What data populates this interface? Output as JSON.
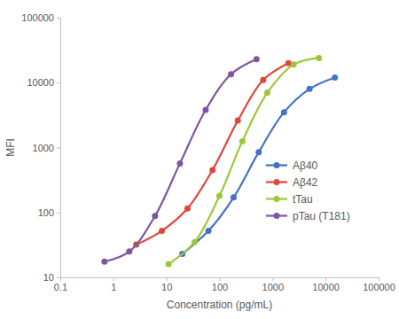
{
  "chart_data": {
    "type": "line",
    "x_label": "Concentration (pg/mL)",
    "y_label": "MFI",
    "log": true,
    "xlim": [
      0.1,
      100000
    ],
    "ylim": [
      10,
      100000
    ],
    "xticks": [
      0.1,
      1,
      10,
      100,
      1000,
      10000,
      100000
    ],
    "yticks": [
      10,
      100,
      1000,
      10000,
      100000
    ],
    "grid": false,
    "legend": "right",
    "marker": "circle",
    "series": [
      {
        "name": "Aβ40",
        "color": "#4472c4",
        "x": [
          20,
          62,
          185,
          550,
          1650,
          5000,
          15000
        ],
        "values": [
          23,
          52,
          170,
          850,
          3500,
          8000,
          12000
        ]
      },
      {
        "name": "Aβ42",
        "color": "#e0473c",
        "x": [
          2.7,
          8.2,
          25,
          74,
          222,
          667,
          2000
        ],
        "values": [
          32,
          52,
          115,
          450,
          2600,
          11000,
          20000
        ]
      },
      {
        "name": "tTau",
        "color": "#9dc73a",
        "x": [
          11,
          34,
          100,
          270,
          800,
          2500,
          7500
        ],
        "values": [
          16,
          35,
          180,
          1250,
          7000,
          19000,
          24000
        ]
      },
      {
        "name": "pTau (T181)",
        "color": "#7f55a3",
        "x": [
          0.68,
          2,
          6.1,
          18,
          55,
          165,
          500
        ],
        "values": [
          17.5,
          25,
          88,
          570,
          3800,
          13500,
          23000
        ]
      }
    ]
  }
}
